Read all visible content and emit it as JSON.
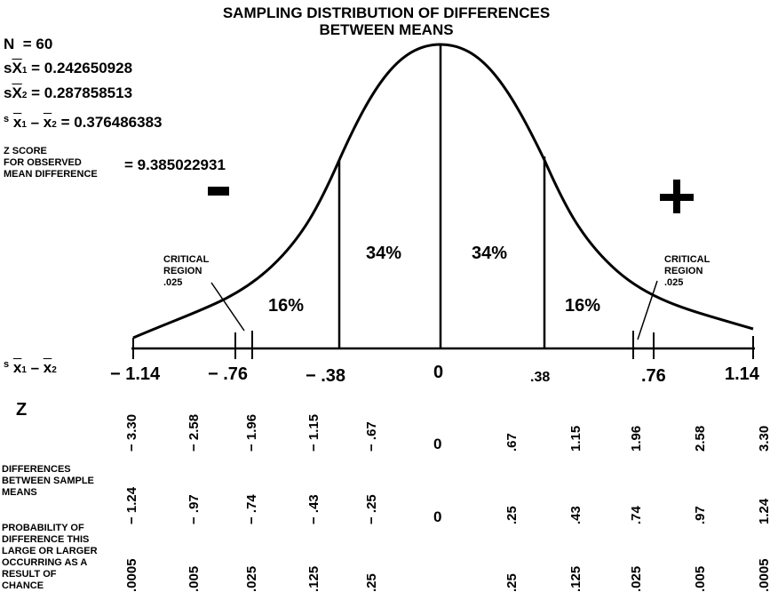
{
  "title_line1": "SAMPLING DISTRIBUTION OF DIFFERENCES",
  "title_line2": "BETWEEN MEANS",
  "stats": {
    "n_label": "N",
    "n_value": "= 60",
    "sx1_value": "= 0.242650928",
    "sx2_value": "= 0.287858513",
    "sdiff_value": "= 0.376486383",
    "z_label_1": "Z SCORE",
    "z_label_2": "FOR OBSERVED",
    "z_label_3": "MEAN DIFFERENCE",
    "z_value": "= 9.385022931"
  },
  "symbols": {
    "minus": "–",
    "plus": "+"
  },
  "percent_labels": {
    "left_tail": "16%",
    "left_center": "34%",
    "right_center": "34%",
    "right_tail": "16%"
  },
  "critical_left": {
    "line1": "CRITICAL",
    "line2": "REGION",
    "line3": ".025"
  },
  "critical_right": {
    "line1": "CRITICAL",
    "line2": "REGION",
    "line3": ".025"
  },
  "axis_ticks": [
    "− 1.14",
    "− .76",
    "− .38",
    "0",
    ".38",
    ".76",
    "1.14"
  ],
  "rows": {
    "z_label": "Z",
    "z_values": [
      "− 3.30",
      "− 2.58",
      "− 1.96",
      "− 1.15",
      "− .67",
      "0",
      ".67",
      "1.15",
      "1.96",
      "2.58",
      "3.30"
    ],
    "diff_label_1": "DIFFERENCES",
    "diff_label_2": "BETWEEN SAMPLE",
    "diff_label_3": "MEANS",
    "diff_values": [
      "− 1.24",
      "− .97",
      "− .74",
      "− .43",
      "− .25",
      "0",
      ".25",
      ".43",
      ".74",
      ".97",
      "1.24"
    ],
    "prob_label_1": "PROBABILITY OF",
    "prob_label_2": "DIFFERENCE THIS",
    "prob_label_3": "LARGE OR LARGER",
    "prob_label_4": "OCCURRING AS A",
    "prob_label_5": "RESULT OF",
    "prob_label_6": "CHANCE",
    "prob_values": [
      ".0005",
      ".005",
      ".025",
      ".125",
      ".25",
      "",
      ".25",
      ".125",
      ".025",
      ".005",
      ".0005"
    ]
  }
}
